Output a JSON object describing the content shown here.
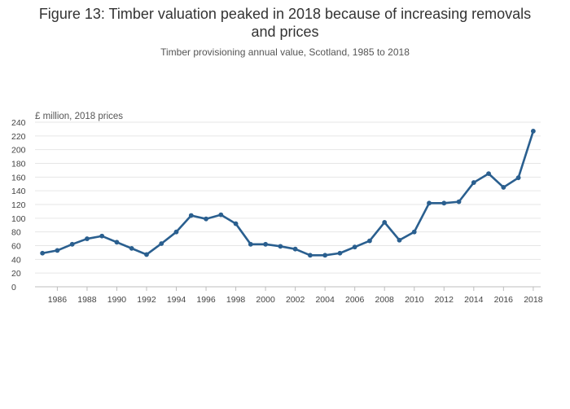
{
  "chart_data": {
    "type": "line",
    "title_lines": [
      "Figure 13: Timber valuation peaked in 2018 because of increasing removals",
      "and prices"
    ],
    "subtitle": "Timber provisioning annual value, Scotland, 1985 to 2018",
    "ylabel": "£ million, 2018 prices",
    "xlabel": "",
    "ylim": [
      0,
      240
    ],
    "xlim": [
      1984.5,
      2018.5
    ],
    "yticks": [
      0,
      20,
      40,
      60,
      80,
      100,
      120,
      140,
      160,
      180,
      200,
      220,
      240
    ],
    "xticks": [
      1986,
      1988,
      1990,
      1992,
      1994,
      1996,
      1998,
      2000,
      2002,
      2004,
      2006,
      2008,
      2010,
      2012,
      2014,
      2016,
      2018
    ],
    "grid": true,
    "series": [
      {
        "name": "Timber provisioning annual value",
        "color": "#2a5f8f",
        "x": [
          1985,
          1986,
          1987,
          1988,
          1989,
          1990,
          1991,
          1992,
          1993,
          1994,
          1995,
          1996,
          1997,
          1998,
          1999,
          2000,
          2001,
          2002,
          2003,
          2004,
          2005,
          2006,
          2007,
          2008,
          2009,
          2010,
          2011,
          2012,
          2013,
          2014,
          2015,
          2016,
          2017,
          2018
        ],
        "y": [
          49,
          53,
          62,
          70,
          74,
          65,
          56,
          47,
          63,
          80,
          104,
          99,
          105,
          92,
          62,
          62,
          59,
          55,
          46,
          46,
          49,
          58,
          67,
          94,
          68,
          80,
          122,
          122,
          124,
          152,
          165,
          145,
          159,
          227
        ]
      }
    ]
  }
}
